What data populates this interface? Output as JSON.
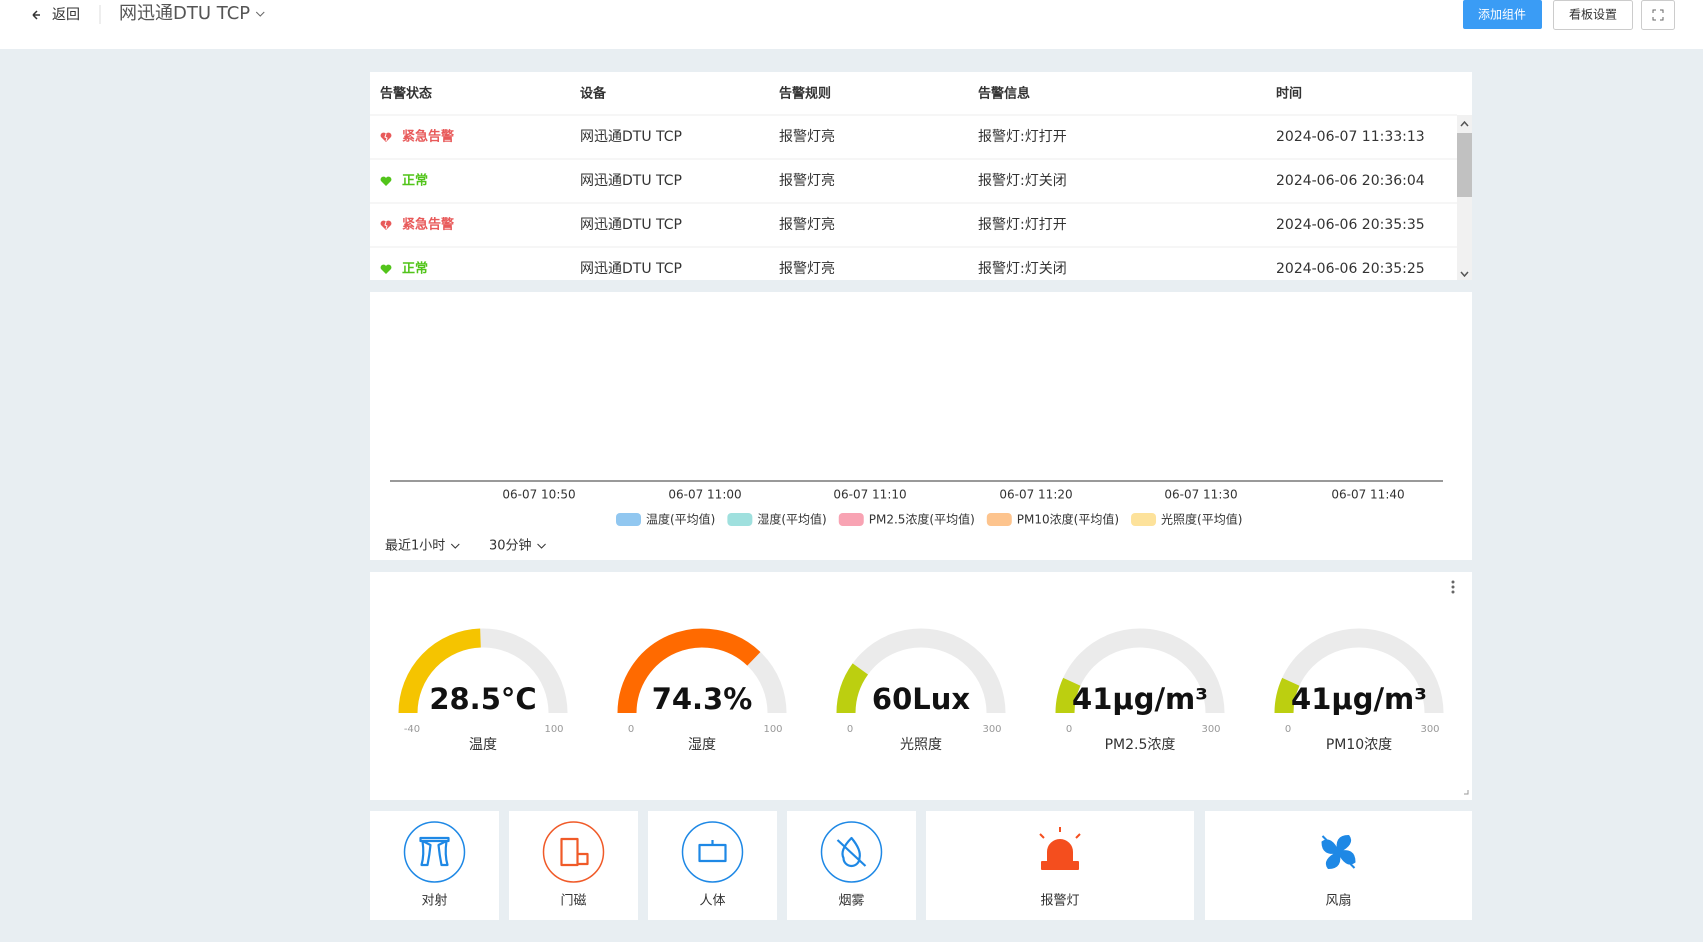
{
  "header": {
    "back": "返回",
    "title": "网迅通DTU TCP",
    "buttons": [
      "添加组件",
      "看板设置"
    ]
  },
  "alarm_table": {
    "columns": [
      "告警状态",
      "设备",
      "告警规则",
      "告警信息",
      "时间"
    ],
    "rows": [
      {
        "status": "紧急告警",
        "status_color": "#e85a5a",
        "device": "网迅通DTU TCP",
        "rule": "报警灯亮",
        "info": "报警灯:灯打开",
        "time": "2024-06-07 11:33:13"
      },
      {
        "status": "正常",
        "status_color": "#52c41a",
        "device": "网迅通DTU TCP",
        "rule": "报警灯亮",
        "info": "报警灯:灯关闭",
        "time": "2024-06-06 20:36:04"
      },
      {
        "status": "紧急告警",
        "status_color": "#e85a5a",
        "device": "网迅通DTU TCP",
        "rule": "报警灯亮",
        "info": "报警灯:灯打开",
        "time": "2024-06-06 20:35:35"
      },
      {
        "status": "正常",
        "status_color": "#52c41a",
        "device": "网迅通DTU TCP",
        "rule": "报警灯亮",
        "info": "报警灯:灯关闭",
        "time": "2024-06-06 20:35:25"
      }
    ]
  },
  "trend": {
    "x_ticks": [
      "06-07 10:50",
      "06-07 11:00",
      "06-07 11:10",
      "06-07 11:20",
      "06-07 11:30",
      "06-07 11:40"
    ],
    "legend": [
      {
        "name": "温度(平均值)",
        "color": "#91c7f0"
      },
      {
        "name": "湿度(平均值)",
        "color": "#9fe0de"
      },
      {
        "name": "PM2.5浓度(平均值)",
        "color": "#f8a3b3"
      },
      {
        "name": "PM10浓度(平均值)",
        "color": "#fdc48e"
      },
      {
        "name": "光照度(平均值)",
        "color": "#fde29b"
      }
    ],
    "range": "最近1小时",
    "interval": "30分钟"
  },
  "gauges": [
    {
      "label": "温度",
      "value": 28.5,
      "value_label": "28.5°C",
      "min": -40,
      "max": 100,
      "color": "#f5c400"
    },
    {
      "label": "湿度",
      "value": 74.3,
      "value_label": "74.3%",
      "min": 0,
      "max": 100,
      "color": "#ff6a00"
    },
    {
      "label": "光照度",
      "value": 60,
      "value_label": "60Lux",
      "min": 0,
      "max": 300,
      "color": "#bccf10"
    },
    {
      "label": "PM2.5浓度",
      "value": 41,
      "value_label": "41μg/m³",
      "min": 0,
      "max": 300,
      "color": "#bccf10"
    },
    {
      "label": "PM10浓度",
      "value": 41,
      "value_label": "41μg/m³",
      "min": 0,
      "max": 300,
      "color": "#bccf10"
    }
  ],
  "devices": [
    {
      "label": "对射",
      "color": "#1e88e5"
    },
    {
      "label": "门磁",
      "color": "#f05a28"
    },
    {
      "label": "人体",
      "color": "#1e88e5"
    },
    {
      "label": "烟雾",
      "color": "#1e88e5"
    },
    {
      "label": "报警灯",
      "color": "#f44e1e"
    },
    {
      "label": "风扇",
      "color": "#1e88e5"
    }
  ]
}
